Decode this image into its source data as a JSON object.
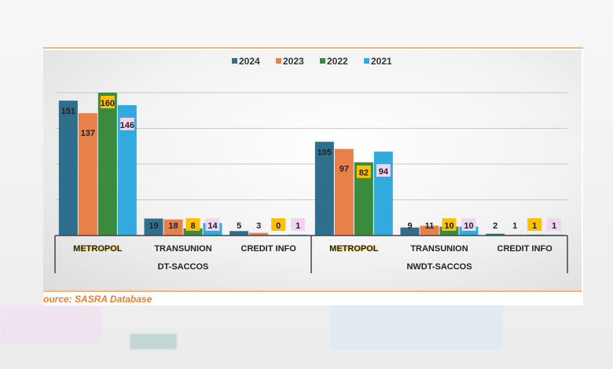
{
  "chart_data": {
    "type": "bar",
    "title": "",
    "groups": [
      {
        "label": "DT-SACCOS",
        "categories": [
          "METROPOL",
          "TRANSUNION",
          "CREDIT INFO"
        ]
      },
      {
        "label": "NWDT-SACCOS",
        "categories": [
          "METROPOL",
          "TRANSUNION",
          "CREDIT INFO"
        ]
      }
    ],
    "categories": [
      "METROPOL",
      "TRANSUNION",
      "CREDIT INFO",
      "METROPOL",
      "TRANSUNION",
      "CREDIT INFO"
    ],
    "series": [
      {
        "name": "2024",
        "color": "#2e6f8e",
        "values": [
          151,
          19,
          5,
          105,
          9,
          2
        ]
      },
      {
        "name": "2023",
        "color": "#e8804a",
        "values": [
          137,
          18,
          3,
          97,
          11,
          1
        ]
      },
      {
        "name": "2022",
        "color": "#3a8a40",
        "values": [
          160,
          8,
          0,
          82,
          10,
          1
        ]
      },
      {
        "name": "2021",
        "color": "#33aadd",
        "values": [
          146,
          14,
          1,
          94,
          10,
          1
        ]
      }
    ],
    "ylim": [
      0,
      160
    ],
    "grid": true,
    "legend": "top-center",
    "label_styles": {
      "2022": "#ffc000",
      "2021": "#f3d3f3"
    }
  },
  "source": "ource: SASRA Database"
}
